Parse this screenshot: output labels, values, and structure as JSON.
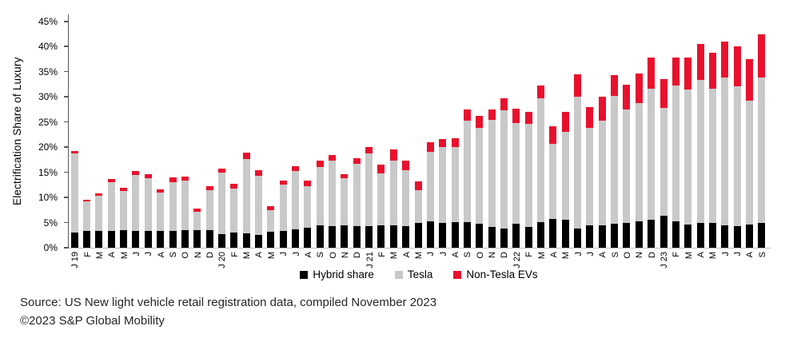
{
  "footer": {
    "line1": "Source: US New light vehicle retail registration data, compiled November 2023",
    "line2": "©2023 S&P Global Mobility"
  },
  "chart_data": {
    "type": "bar",
    "subtype": "stacked-vertical",
    "title": "",
    "xlabel": "",
    "ylabel": "Electrification Share of Luxury",
    "ylim": [
      0,
      45
    ],
    "ytick_step": 5,
    "ytick_labels": [
      "0%",
      "5%",
      "10%",
      "15%",
      "20%",
      "25%",
      "30%",
      "35%",
      "40%",
      "45%"
    ],
    "grid": "off",
    "legend_position": "bottom-center",
    "unit": "%",
    "categories": [
      "J 19",
      "F",
      "M",
      "A",
      "M",
      "J",
      "J",
      "A",
      "S",
      "O",
      "N",
      "D",
      "J 20",
      "F",
      "M",
      "A",
      "M",
      "J",
      "J",
      "A",
      "S",
      "O",
      "N",
      "D",
      "J 21",
      "F",
      "M",
      "A",
      "M",
      "J",
      "J",
      "A",
      "S",
      "O",
      "N",
      "D",
      "J 22",
      "F",
      "M",
      "A",
      "M",
      "J",
      "J",
      "A",
      "S",
      "O",
      "N",
      "D",
      "J 23",
      "F",
      "M",
      "A",
      "M",
      "J",
      "J",
      "A",
      "S"
    ],
    "series": [
      {
        "name": "Hybrid share",
        "color": "#000000",
        "values": [
          3.0,
          3.3,
          3.4,
          3.3,
          3.5,
          3.3,
          3.3,
          3.4,
          3.3,
          3.5,
          3.5,
          3.5,
          2.7,
          3.1,
          2.9,
          2.5,
          3.2,
          3.3,
          3.6,
          3.9,
          4.4,
          4.3,
          4.4,
          4.3,
          4.3,
          4.4,
          4.4,
          4.3,
          4.9,
          5.2,
          4.9,
          5.1,
          5.1,
          4.7,
          4.2,
          3.8,
          4.7,
          4.1,
          5.1,
          5.8,
          5.6,
          3.8,
          4.5,
          4.5,
          4.7,
          4.9,
          5.3,
          5.5,
          6.4,
          5.3,
          4.6,
          4.9,
          5.0,
          4.5,
          4.3,
          4.6,
          4.9
        ]
      },
      {
        "name": "Tesla",
        "color": "#c9c9c9",
        "values": [
          15.8,
          6.0,
          7.0,
          9.8,
          7.8,
          11.2,
          10.6,
          7.5,
          9.7,
          9.9,
          3.6,
          7.9,
          12.2,
          8.7,
          14.7,
          11.8,
          4.3,
          9.3,
          11.6,
          8.4,
          11.7,
          13.0,
          9.5,
          12.4,
          14.5,
          10.4,
          13.0,
          11.1,
          6.5,
          13.9,
          15.2,
          15.0,
          20.2,
          19.2,
          21.3,
          23.6,
          20.1,
          20.5,
          24.6,
          14.8,
          17.5,
          26.3,
          19.4,
          20.8,
          25.5,
          22.6,
          23.5,
          26.2,
          21.5,
          27.0,
          26.9,
          28.5,
          26.6,
          29.3,
          27.9,
          24.7,
          28.9
        ]
      },
      {
        "name": "Non-Tesla EVs",
        "color": "#e8112d",
        "values": [
          0.5,
          0.3,
          0.4,
          0.6,
          0.6,
          0.7,
          0.7,
          0.7,
          1.0,
          0.8,
          0.7,
          0.8,
          0.9,
          0.9,
          1.4,
          1.2,
          0.8,
          0.7,
          1.1,
          1.1,
          1.3,
          1.2,
          0.8,
          1.1,
          1.3,
          1.7,
          2.2,
          2.0,
          1.8,
          1.9,
          1.5,
          1.7,
          2.2,
          2.3,
          2.0,
          2.4,
          2.9,
          2.5,
          2.6,
          3.6,
          4.0,
          4.4,
          4.1,
          4.7,
          4.2,
          4.9,
          5.8,
          6.1,
          5.6,
          5.5,
          6.4,
          7.2,
          7.2,
          7.3,
          7.8,
          8.3,
          8.6
        ]
      }
    ]
  }
}
